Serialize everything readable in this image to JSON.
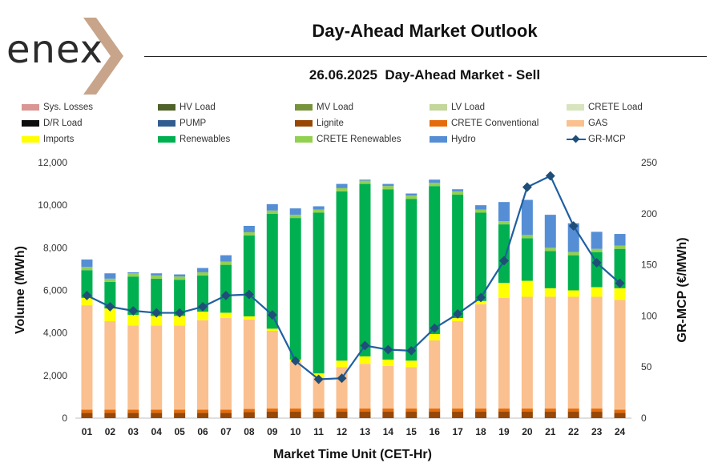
{
  "header": {
    "logo_text": "enex",
    "title": "Day-Ahead Market Outlook",
    "subtitle": "26.06.2025  Day-Ahead Market - Sell"
  },
  "chart_data": {
    "type": "bar",
    "stacked": true,
    "xlabel": "Market Time Unit (CET-Hr)",
    "ylabel": "Volume (MWh)",
    "y2label": "GR-MCP (€/MWh)",
    "ylim": [
      0,
      12000
    ],
    "y2lim": [
      0,
      250
    ],
    "yticks": [
      "0",
      "2,000",
      "4,000",
      "6,000",
      "8,000",
      "10,000",
      "12,000"
    ],
    "y2ticks": [
      "0",
      "50",
      "100",
      "150",
      "200",
      "250"
    ],
    "categories": [
      "01",
      "02",
      "03",
      "04",
      "05",
      "06",
      "07",
      "08",
      "09",
      "10",
      "11",
      "12",
      "13",
      "14",
      "15",
      "16",
      "17",
      "18",
      "19",
      "20",
      "21",
      "22",
      "23",
      "24"
    ],
    "series": [
      {
        "name": "Sys. Losses",
        "color": "#d99694",
        "values": [
          0,
          0,
          0,
          0,
          0,
          0,
          0,
          0,
          0,
          0,
          0,
          0,
          0,
          0,
          0,
          0,
          0,
          0,
          0,
          0,
          0,
          0,
          0,
          0
        ]
      },
      {
        "name": "HV Load",
        "color": "#4f6228",
        "values": [
          0,
          0,
          0,
          0,
          0,
          0,
          0,
          0,
          0,
          0,
          0,
          0,
          0,
          0,
          0,
          0,
          0,
          0,
          0,
          0,
          0,
          0,
          0,
          0
        ]
      },
      {
        "name": "MV Load",
        "color": "#77933c",
        "values": [
          0,
          0,
          0,
          0,
          0,
          0,
          0,
          0,
          0,
          0,
          0,
          0,
          0,
          0,
          0,
          0,
          0,
          0,
          0,
          0,
          0,
          0,
          0,
          0
        ]
      },
      {
        "name": "LV Load",
        "color": "#c3d69b",
        "values": [
          0,
          0,
          0,
          0,
          0,
          0,
          0,
          0,
          0,
          0,
          0,
          0,
          0,
          0,
          0,
          0,
          0,
          0,
          0,
          0,
          0,
          0,
          0,
          0
        ]
      },
      {
        "name": "CRETE Load",
        "color": "#d7e4bd",
        "values": [
          0,
          0,
          0,
          0,
          0,
          0,
          0,
          0,
          0,
          0,
          0,
          0,
          0,
          0,
          0,
          0,
          0,
          0,
          0,
          0,
          0,
          0,
          0,
          0
        ]
      },
      {
        "name": "D/R Load",
        "color": "#0d0d0d",
        "values": [
          0,
          0,
          0,
          0,
          0,
          0,
          0,
          0,
          0,
          0,
          0,
          0,
          0,
          0,
          0,
          0,
          0,
          0,
          0,
          0,
          0,
          0,
          0,
          0
        ]
      },
      {
        "name": "PUMP",
        "color": "#335d8f",
        "values": [
          0,
          0,
          0,
          0,
          0,
          0,
          0,
          0,
          0,
          0,
          0,
          0,
          0,
          0,
          0,
          0,
          0,
          0,
          0,
          0,
          0,
          0,
          0,
          0
        ]
      },
      {
        "name": "Lignite",
        "color": "#974706",
        "values": [
          250,
          250,
          250,
          250,
          250,
          250,
          250,
          280,
          300,
          300,
          300,
          300,
          300,
          300,
          300,
          300,
          300,
          300,
          300,
          300,
          300,
          300,
          300,
          250
        ]
      },
      {
        "name": "CRETE Conventional",
        "color": "#e46c0a",
        "values": [
          150,
          150,
          150,
          150,
          150,
          150,
          150,
          150,
          150,
          150,
          150,
          150,
          150,
          150,
          150,
          150,
          150,
          150,
          150,
          150,
          150,
          150,
          150,
          150
        ]
      },
      {
        "name": "GAS",
        "color": "#fac090",
        "values": [
          4900,
          4150,
          3950,
          3950,
          3950,
          4200,
          4300,
          4200,
          3650,
          2200,
          1450,
          1950,
          2100,
          2000,
          1950,
          3200,
          4100,
          4900,
          5200,
          5250,
          5250,
          5250,
          5250,
          5150
        ]
      },
      {
        "name": "Imports",
        "color": "#ffff00",
        "values": [
          350,
          600,
          500,
          450,
          450,
          400,
          250,
          150,
          100,
          100,
          200,
          300,
          350,
          300,
          300,
          300,
          150,
          150,
          700,
          750,
          400,
          300,
          450,
          550
        ]
      },
      {
        "name": "Renewables",
        "color": "#00b050",
        "values": [
          1300,
          1250,
          1800,
          1750,
          1700,
          1700,
          2250,
          3800,
          5400,
          6650,
          7550,
          7950,
          8100,
          8000,
          7600,
          6950,
          5800,
          4150,
          2750,
          2000,
          1750,
          1650,
          1650,
          1850
        ]
      },
      {
        "name": "CRETE Renewables",
        "color": "#92d050",
        "values": [
          150,
          150,
          150,
          150,
          150,
          150,
          150,
          150,
          150,
          150,
          150,
          150,
          150,
          150,
          150,
          150,
          150,
          150,
          150,
          150,
          150,
          150,
          150,
          150
        ]
      },
      {
        "name": "Hydro",
        "color": "#558ed5",
        "values": [
          350,
          250,
          50,
          100,
          100,
          200,
          300,
          300,
          300,
          300,
          150,
          200,
          50,
          100,
          100,
          150,
          100,
          200,
          900,
          1650,
          1550,
          1350,
          800,
          550
        ]
      }
    ],
    "line": {
      "name": "GR-MCP",
      "color": "#1f5fa0",
      "axis": "y2",
      "values": [
        120,
        109,
        105,
        103,
        103,
        109,
        120,
        121,
        101,
        56,
        38,
        39,
        71,
        67,
        66,
        88,
        102,
        118,
        154,
        226,
        237,
        188,
        152,
        132
      ]
    }
  }
}
